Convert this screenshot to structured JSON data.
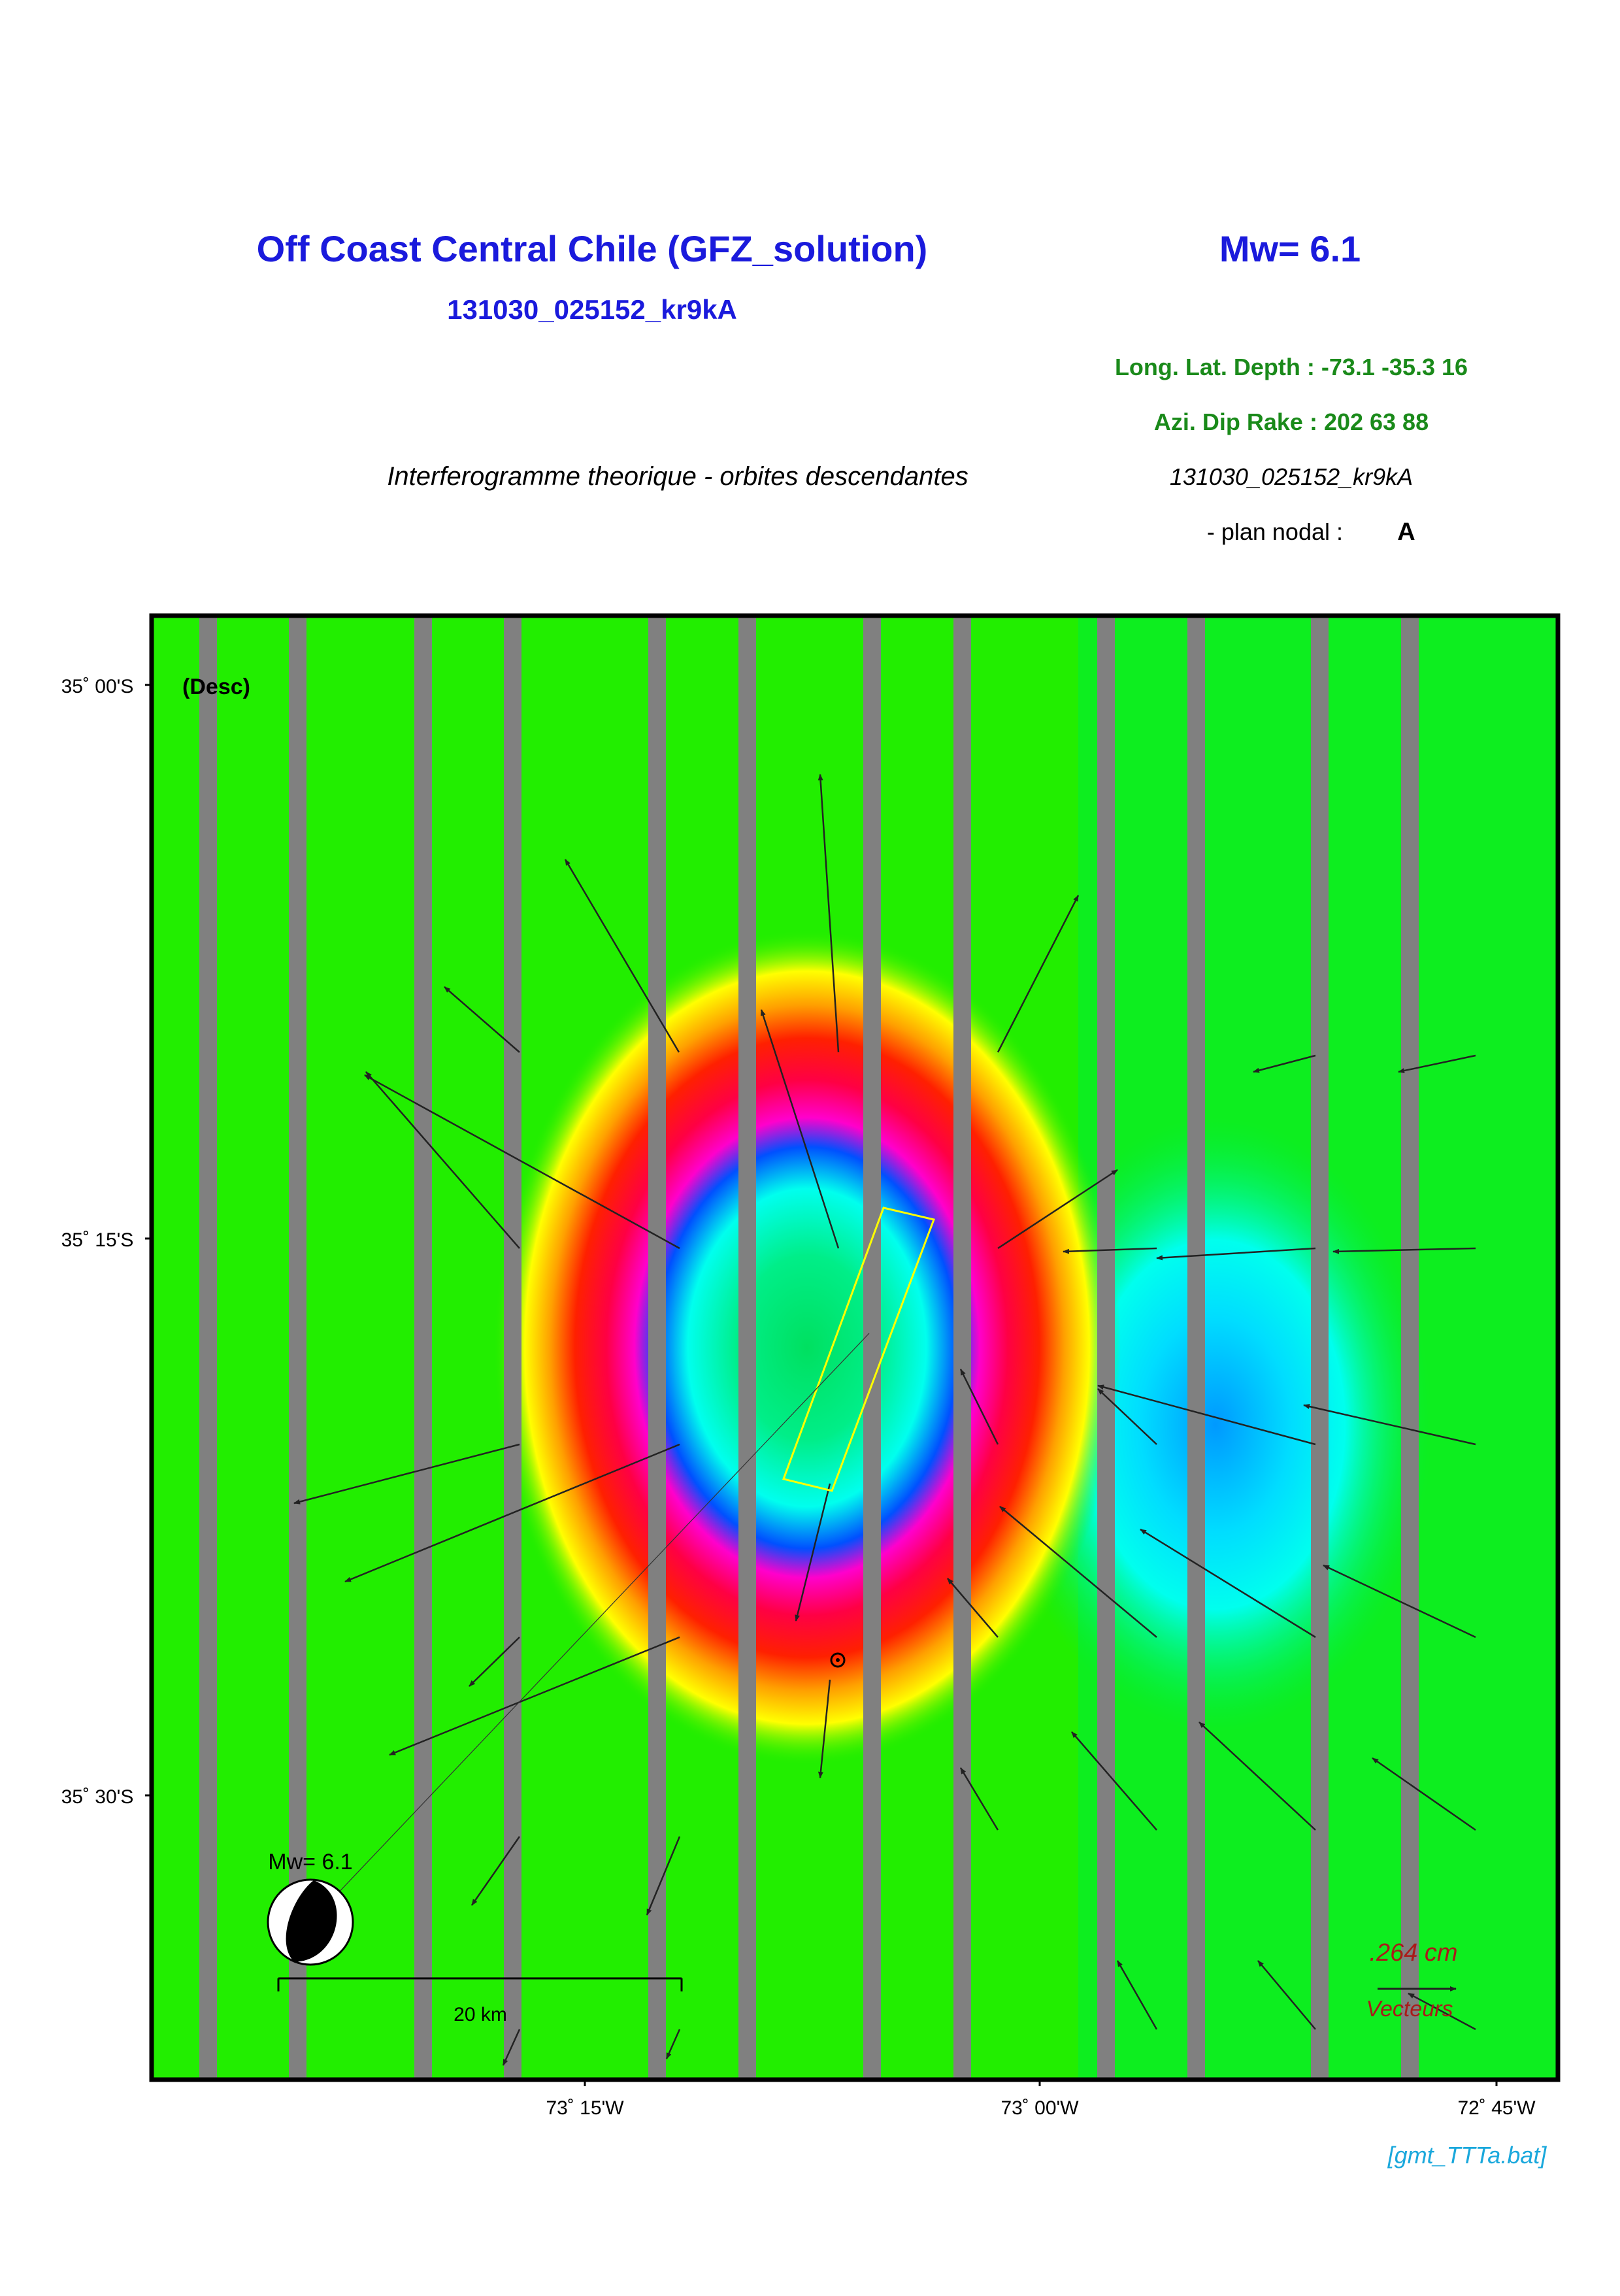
{
  "header": {
    "title": "Off Coast Central Chile (GFZ_solution)",
    "magnitude": "Mw= 6.1",
    "event_id": "131030_025152_kr9kA",
    "location_line": "Long. Lat. Depth : -73.1 -35.3 16",
    "mechanism_line": "Azi.  Dip   Rake :  202 63 88",
    "subtitle": "Interferogramme theorique - orbites descendantes",
    "event_id_italic": "131030_025152_kr9kA",
    "nodal_plane_label": "- plan nodal :",
    "nodal_plane": "A"
  },
  "map": {
    "orbit_label": "(Desc)",
    "lat_labels": [
      "35˚ 00'S",
      "35˚ 15'S",
      "35˚ 30'S"
    ],
    "lon_labels": [
      "73˚ 15'W",
      "73˚ 00'W",
      "72˚ 45'W"
    ],
    "beachball_label": "Mw= 6.1",
    "scale_bar_label": "20 km",
    "vector_scale": ".264  cm",
    "vector_label": "Vecteurs"
  },
  "footer": {
    "script_name": "[gmt_TTTa.bat]"
  }
}
